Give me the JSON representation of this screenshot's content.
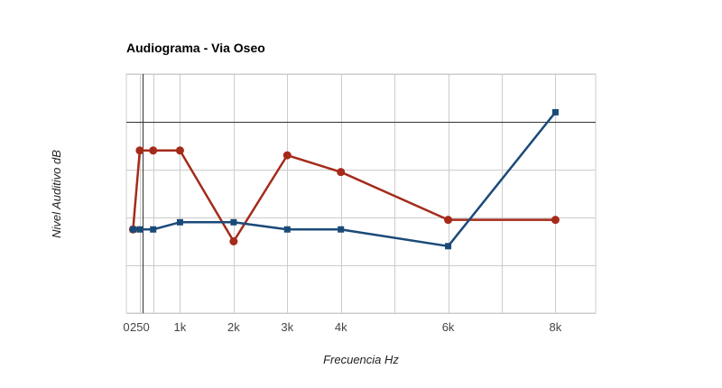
{
  "chart_data": {
    "type": "line",
    "title": "Audiograma - Via Oseo",
    "xlabel": "Frecuencia Hz",
    "ylabel": "Nivel Auditivo dB",
    "xlim": [
      0,
      8750
    ],
    "ylim": [
      -80,
      20
    ],
    "x_ticks": [
      {
        "value": 0,
        "label": "0"
      },
      {
        "value": 250,
        "label": "250"
      },
      {
        "value": 1000,
        "label": "1k"
      },
      {
        "value": 2000,
        "label": "2k"
      },
      {
        "value": 3000,
        "label": "3k"
      },
      {
        "value": 4000,
        "label": "4k"
      },
      {
        "value": 6000,
        "label": "6k"
      },
      {
        "value": 8000,
        "label": "8k"
      }
    ],
    "x_gridlines": [
      250,
      500,
      1000,
      2000,
      3000,
      4000,
      5000,
      6000,
      7000,
      8000
    ],
    "y_gridlines": [
      -80,
      -60,
      -40,
      -20,
      0,
      20
    ],
    "zero_line_y": 0,
    "zero_line_x": 300,
    "grid": true,
    "legend": "none",
    "series": [
      {
        "color": "#a52a1a",
        "marker": "circle",
        "x": [
          125,
          250,
          500,
          1000,
          2000,
          3000,
          4000,
          6000,
          8000
        ],
        "y": [
          -45,
          -12,
          -12,
          -12,
          -50,
          -14,
          -21,
          -41,
          -41
        ]
      },
      {
        "color": "#1a4a78",
        "marker": "square",
        "x": [
          125,
          250,
          500,
          1000,
          2000,
          3000,
          4000,
          6000,
          8000
        ],
        "y": [
          -45,
          -45,
          -45,
          -42,
          -42,
          -45,
          -45,
          -52,
          4
        ]
      }
    ]
  }
}
